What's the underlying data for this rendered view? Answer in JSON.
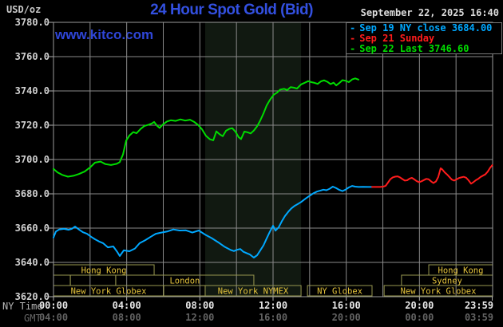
{
  "header": {
    "unit_label": "USD/oz",
    "title": "24 Hour Spot Gold (Bid)",
    "datetime": "September 22, 2025 16:40",
    "watermark": "www.kitco.com",
    "title_color": "#3350e0",
    "watermark_color": "#2f46d8"
  },
  "legend": {
    "items": [
      {
        "dash": "-",
        "label": "Sep 19 NY close 3684.00",
        "color": "#00a8ff"
      },
      {
        "dash": "-",
        "label": "Sep 21 Sunday",
        "color": "#ff1c1c"
      },
      {
        "dash": "-",
        "label": "Sep 22 Last 3746.60",
        "color": "#00dd00"
      }
    ]
  },
  "axis_corner": {
    "ny_time_label": "NY Time",
    "gmt_label": "GMT"
  },
  "chart_data": {
    "type": "line",
    "title": "24 Hour Spot Gold (Bid)",
    "ylabel": "USD/oz",
    "xlim_hours_ny": [
      0,
      24
    ],
    "ylim": [
      3620,
      3780
    ],
    "y_ticks": [
      3780,
      3760,
      3740,
      3720,
      3700,
      3680,
      3660,
      3640,
      3620
    ],
    "grid": {
      "x_interval_hours": 2,
      "color": "#8a8a8a",
      "border_color": "#9a9a9a",
      "tick_color": "#b0b0b0"
    },
    "x_ticks": [
      {
        "h": 0.0,
        "ny": "00:00",
        "gmt": "04:00"
      },
      {
        "h": 4.0,
        "ny": "04:00",
        "gmt": "08:00"
      },
      {
        "h": 8.0,
        "ny": "08:00",
        "gmt": "12:00"
      },
      {
        "h": 12.0,
        "ny": "12:00",
        "gmt": "16:00"
      },
      {
        "h": 16.0,
        "ny": "16:00",
        "gmt": "20:00"
      },
      {
        "h": 20.0,
        "ny": "20:00",
        "gmt": "00:00"
      },
      {
        "h": 23.98,
        "ny": "23:59",
        "gmt": "03:59"
      }
    ],
    "x_tick_colors": {
      "ny": "#e8e8e8",
      "gmt": "#636363"
    },
    "shaded_session_hours": [
      8.29,
      13.53
    ],
    "shaded_color": "#111911",
    "sessions_style": {
      "border": "#97974f",
      "text": "#e6c53c"
    },
    "sessions": [
      [
        {
          "start": 0.0,
          "end": 5.5,
          "label": "Hong Kong"
        },
        {
          "start": 20.51,
          "end": 24.0,
          "label": "Hong Kong"
        }
      ],
      [
        {
          "start": 0.0,
          "end": 0.92,
          "label": ""
        },
        {
          "start": 0.92,
          "end": 3.4,
          "label": ""
        },
        {
          "start": 3.4,
          "end": 10.95,
          "label": "London"
        },
        {
          "start": 19.02,
          "end": 24.0,
          "label": "Sydney"
        }
      ],
      [
        {
          "start": 0.0,
          "end": 6.02,
          "label": "New York Globex"
        },
        {
          "start": 6.02,
          "end": 8.29,
          "label": ""
        },
        {
          "start": 8.29,
          "end": 13.53,
          "label": "New York NYMEX"
        },
        {
          "start": 13.88,
          "end": 17.41,
          "label": "NY Globex"
        },
        {
          "start": 18.07,
          "end": 24.0,
          "label": "New York Globex"
        }
      ]
    ],
    "series": [
      {
        "name": "Sep 19 NY close 3684.00",
        "color": "#00a8ff",
        "points": [
          [
            0.0,
            3654.5
          ],
          [
            0.13,
            3658.0
          ],
          [
            0.31,
            3659.2
          ],
          [
            0.57,
            3659.6
          ],
          [
            0.83,
            3659.0
          ],
          [
            1.0,
            3659.6
          ],
          [
            1.18,
            3660.9
          ],
          [
            1.4,
            3659.1
          ],
          [
            1.61,
            3657.6
          ],
          [
            1.83,
            3656.7
          ],
          [
            2.05,
            3655.0
          ],
          [
            2.27,
            3653.5
          ],
          [
            2.49,
            3652.2
          ],
          [
            2.71,
            3651.2
          ],
          [
            2.97,
            3648.8
          ],
          [
            3.27,
            3649.3
          ],
          [
            3.49,
            3646.0
          ],
          [
            3.62,
            3643.7
          ],
          [
            3.84,
            3647.0
          ],
          [
            4.15,
            3646.5
          ],
          [
            4.45,
            3648.1
          ],
          [
            4.71,
            3651.2
          ],
          [
            5.02,
            3653.0
          ],
          [
            5.32,
            3655.0
          ],
          [
            5.59,
            3656.7
          ],
          [
            5.89,
            3657.4
          ],
          [
            6.24,
            3658.1
          ],
          [
            6.55,
            3659.2
          ],
          [
            6.89,
            3658.6
          ],
          [
            7.24,
            3658.7
          ],
          [
            7.59,
            3657.4
          ],
          [
            7.94,
            3658.6
          ],
          [
            8.29,
            3656.2
          ],
          [
            8.64,
            3654.2
          ],
          [
            8.99,
            3651.8
          ],
          [
            9.34,
            3649.2
          ],
          [
            9.69,
            3647.2
          ],
          [
            9.86,
            3646.6
          ],
          [
            10.04,
            3647.4
          ],
          [
            10.21,
            3647.8
          ],
          [
            10.38,
            3646.2
          ],
          [
            10.56,
            3645.4
          ],
          [
            10.73,
            3644.6
          ],
          [
            10.95,
            3642.8
          ],
          [
            11.13,
            3644.2
          ],
          [
            11.3,
            3647.0
          ],
          [
            11.48,
            3650.0
          ],
          [
            11.65,
            3654.0
          ],
          [
            11.83,
            3658.0
          ],
          [
            12.0,
            3661.4
          ],
          [
            12.13,
            3658.5
          ],
          [
            12.31,
            3660.5
          ],
          [
            12.48,
            3664.0
          ],
          [
            12.65,
            3667.0
          ],
          [
            12.83,
            3669.5
          ],
          [
            13.0,
            3671.5
          ],
          [
            13.18,
            3673.0
          ],
          [
            13.35,
            3674.0
          ],
          [
            13.53,
            3675.2
          ],
          [
            13.7,
            3676.6
          ],
          [
            13.88,
            3678.0
          ],
          [
            14.05,
            3679.2
          ],
          [
            14.22,
            3680.4
          ],
          [
            14.4,
            3681.3
          ],
          [
            14.57,
            3681.8
          ],
          [
            14.75,
            3682.4
          ],
          [
            14.92,
            3682.1
          ],
          [
            15.1,
            3683.0
          ],
          [
            15.27,
            3684.2
          ],
          [
            15.45,
            3683.3
          ],
          [
            15.62,
            3682.3
          ],
          [
            15.79,
            3681.6
          ],
          [
            15.97,
            3682.5
          ],
          [
            16.14,
            3683.7
          ],
          [
            16.32,
            3684.6
          ],
          [
            16.49,
            3684.2
          ],
          [
            16.67,
            3684.0
          ],
          [
            16.93,
            3684.1
          ],
          [
            17.19,
            3684.0
          ],
          [
            17.41,
            3684.0
          ]
        ]
      },
      {
        "name": "Sep 21 Sunday",
        "color": "#ff1c1c",
        "points": [
          [
            17.41,
            3684.0
          ],
          [
            17.63,
            3684.0
          ],
          [
            17.85,
            3684.0
          ],
          [
            18.02,
            3684.2
          ],
          [
            18.15,
            3684.6
          ],
          [
            18.28,
            3686.5
          ],
          [
            18.41,
            3688.5
          ],
          [
            18.54,
            3689.6
          ],
          [
            18.67,
            3690.0
          ],
          [
            18.81,
            3690.2
          ],
          [
            18.94,
            3689.6
          ],
          [
            19.07,
            3688.6
          ],
          [
            19.2,
            3687.7
          ],
          [
            19.33,
            3687.9
          ],
          [
            19.46,
            3688.9
          ],
          [
            19.59,
            3689.3
          ],
          [
            19.72,
            3688.4
          ],
          [
            19.85,
            3687.4
          ],
          [
            19.98,
            3686.8
          ],
          [
            20.11,
            3687.3
          ],
          [
            20.24,
            3688.0
          ],
          [
            20.37,
            3688.7
          ],
          [
            20.5,
            3688.5
          ],
          [
            20.63,
            3687.3
          ],
          [
            20.76,
            3686.3
          ],
          [
            20.9,
            3687.2
          ],
          [
            21.03,
            3689.8
          ],
          [
            21.16,
            3694.9
          ],
          [
            21.25,
            3694.2
          ],
          [
            21.38,
            3692.5
          ],
          [
            21.51,
            3691.3
          ],
          [
            21.64,
            3689.8
          ],
          [
            21.77,
            3688.3
          ],
          [
            21.9,
            3687.7
          ],
          [
            22.03,
            3688.4
          ],
          [
            22.16,
            3689.2
          ],
          [
            22.29,
            3689.6
          ],
          [
            22.42,
            3689.9
          ],
          [
            22.55,
            3689.4
          ],
          [
            22.68,
            3687.9
          ],
          [
            22.82,
            3685.9
          ],
          [
            22.95,
            3686.8
          ],
          [
            23.08,
            3687.9
          ],
          [
            23.21,
            3688.7
          ],
          [
            23.34,
            3689.8
          ],
          [
            23.47,
            3690.6
          ],
          [
            23.6,
            3691.3
          ],
          [
            23.73,
            3692.9
          ],
          [
            23.86,
            3695.1
          ],
          [
            23.98,
            3696.7
          ]
        ]
      },
      {
        "name": "Sep 22 Last 3746.60",
        "color": "#00dd00",
        "points": [
          [
            0.0,
            3694.5
          ],
          [
            0.22,
            3692.5
          ],
          [
            0.48,
            3691.0
          ],
          [
            0.79,
            3690.0
          ],
          [
            1.09,
            3690.5
          ],
          [
            1.4,
            3691.6
          ],
          [
            1.7,
            3693.0
          ],
          [
            2.01,
            3695.5
          ],
          [
            2.27,
            3698.2
          ],
          [
            2.57,
            3698.8
          ],
          [
            2.84,
            3697.3
          ],
          [
            3.14,
            3696.8
          ],
          [
            3.45,
            3697.5
          ],
          [
            3.62,
            3698.5
          ],
          [
            3.8,
            3703.0
          ],
          [
            3.97,
            3711.0
          ],
          [
            4.15,
            3714.0
          ],
          [
            4.36,
            3716.0
          ],
          [
            4.54,
            3715.3
          ],
          [
            4.76,
            3717.8
          ],
          [
            4.97,
            3719.6
          ],
          [
            5.19,
            3720.3
          ],
          [
            5.37,
            3721.0
          ],
          [
            5.5,
            3721.9
          ],
          [
            5.67,
            3719.6
          ],
          [
            5.8,
            3718.4
          ],
          [
            5.98,
            3720.4
          ],
          [
            6.2,
            3722.2
          ],
          [
            6.41,
            3722.9
          ],
          [
            6.68,
            3722.5
          ],
          [
            6.94,
            3723.4
          ],
          [
            7.2,
            3722.7
          ],
          [
            7.46,
            3723.2
          ],
          [
            7.68,
            3722.0
          ],
          [
            7.9,
            3720.2
          ],
          [
            8.12,
            3717.6
          ],
          [
            8.33,
            3713.8
          ],
          [
            8.55,
            3711.8
          ],
          [
            8.73,
            3711.2
          ],
          [
            8.9,
            3716.4
          ],
          [
            9.08,
            3714.7
          ],
          [
            9.25,
            3713.6
          ],
          [
            9.43,
            3716.8
          ],
          [
            9.6,
            3717.8
          ],
          [
            9.77,
            3718.3
          ],
          [
            9.95,
            3716.2
          ],
          [
            10.12,
            3713.0
          ],
          [
            10.25,
            3711.9
          ],
          [
            10.43,
            3716.3
          ],
          [
            10.6,
            3715.9
          ],
          [
            10.78,
            3715.2
          ],
          [
            10.95,
            3716.9
          ],
          [
            11.13,
            3719.4
          ],
          [
            11.3,
            3722.8
          ],
          [
            11.48,
            3727.0
          ],
          [
            11.65,
            3731.5
          ],
          [
            11.83,
            3734.8
          ],
          [
            12.04,
            3737.8
          ],
          [
            12.22,
            3739.0
          ],
          [
            12.39,
            3740.8
          ],
          [
            12.61,
            3741.2
          ],
          [
            12.78,
            3740.5
          ],
          [
            12.96,
            3742.2
          ],
          [
            13.13,
            3741.9
          ],
          [
            13.31,
            3741.4
          ],
          [
            13.53,
            3743.8
          ],
          [
            13.7,
            3744.6
          ],
          [
            13.92,
            3745.7
          ],
          [
            14.09,
            3745.1
          ],
          [
            14.27,
            3744.7
          ],
          [
            14.44,
            3744.1
          ],
          [
            14.62,
            3745.6
          ],
          [
            14.79,
            3746.2
          ],
          [
            14.97,
            3745.3
          ],
          [
            15.14,
            3744.0
          ],
          [
            15.31,
            3744.8
          ],
          [
            15.45,
            3743.2
          ],
          [
            15.62,
            3744.6
          ],
          [
            15.79,
            3746.3
          ],
          [
            15.97,
            3745.9
          ],
          [
            16.14,
            3745.1
          ],
          [
            16.32,
            3746.7
          ],
          [
            16.49,
            3747.3
          ],
          [
            16.67,
            3746.6
          ]
        ]
      }
    ]
  }
}
